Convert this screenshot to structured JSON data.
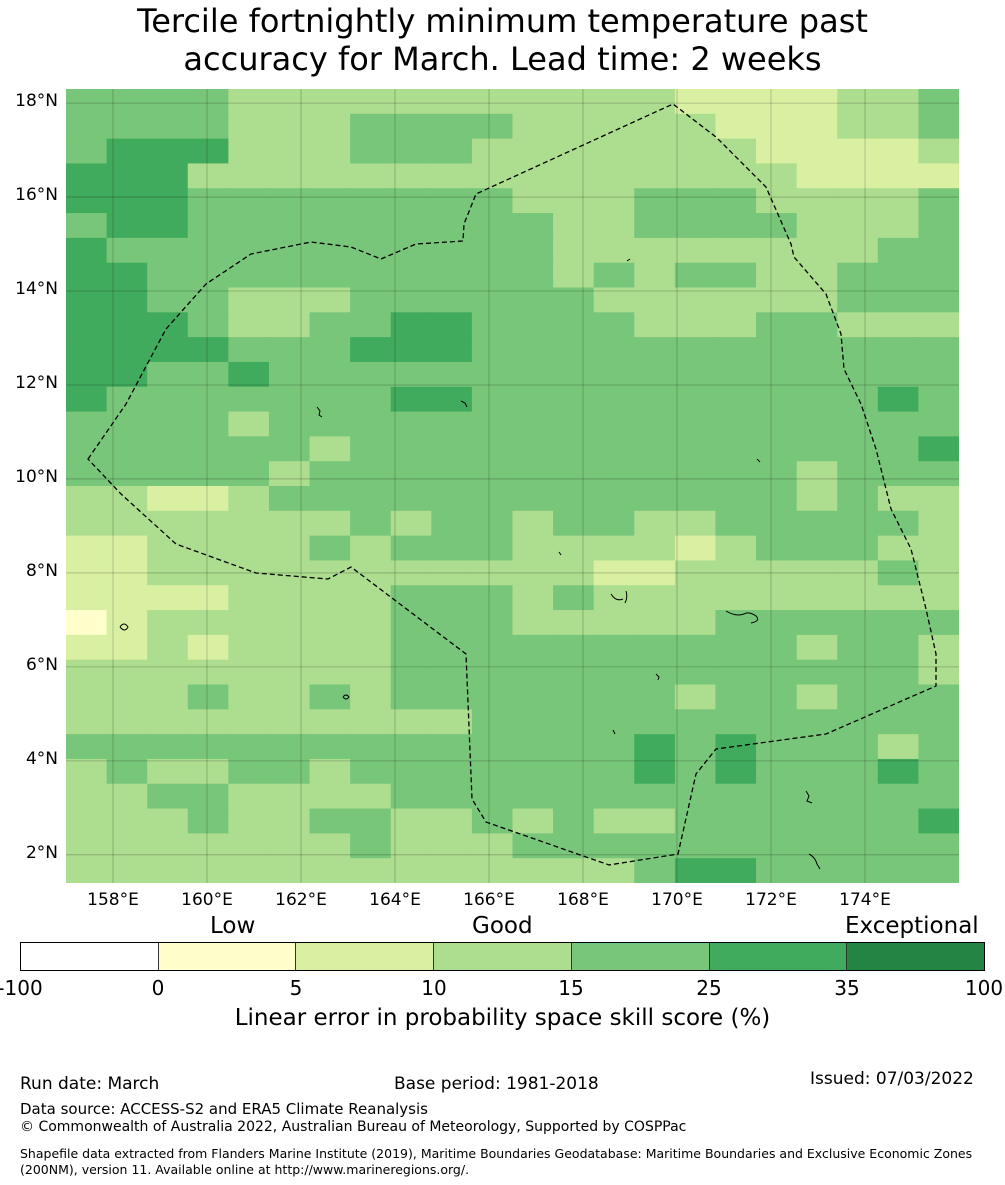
{
  "title": {
    "line1": "Tercile fortnightly minimum temperature past",
    "line2": "accuracy for March. Lead time: 2 weeks"
  },
  "map": {
    "lat_labels": [
      "18°N",
      "16°N",
      "14°N",
      "12°N",
      "10°N",
      "8°N",
      "6°N",
      "4°N",
      "2°N"
    ],
    "lon_labels": [
      "158°E",
      "160°E",
      "162°E",
      "164°E",
      "166°E",
      "168°E",
      "170°E",
      "172°E",
      "174°E"
    ],
    "lat_range": [
      1.4,
      18.3
    ],
    "lon_range": [
      157,
      176
    ],
    "grid": [
      "3333222222222221111223",
      "3333222333322222111223",
      "3444222333222222211112",
      "4442222222222222221111",
      "4443333333322233322223",
      "3443333333332233332223",
      "4333333333332222222233",
      "4433333333332323322333",
      "4433222333333222222333",
      "4443223344333322233222",
      "4444333444333333333333",
      "4433433333333333333333",
      "4333333344333333333343",
      "3333233333333333333333",
      "3333332333333333333334",
      "3333323333333333332333",
      "2211233333333333332322",
      "2222222323323322333332",
      "1122223233322221233322",
      "1122222222222112222232",
      "1111222233323222222222",
      "0122222233322222333333",
      "1121222233333333332332",
      "2222222233333333333332",
      "2223223233333332332333",
      "2222222222333333333333",
      "3333333333333343433323",
      "2322332333333343433343",
      "2233222233333333333333",
      "2223223322323223333334",
      "2222222322233333333333",
      "2222222222222234433333"
    ],
    "palette": [
      "#ffffcc",
      "#d9f0a3",
      "#addd8e",
      "#78c679",
      "#41ab5d",
      "#238443"
    ]
  },
  "colorbar": {
    "category_low": "Low",
    "category_good": "Good",
    "category_exceptional": "Exceptional",
    "ticks": [
      "-100",
      "0",
      "5",
      "10",
      "15",
      "25",
      "35",
      "100"
    ],
    "colors": [
      "#ffffff",
      "#ffffcc",
      "#d9f0a3",
      "#addd8e",
      "#78c679",
      "#41ab5d",
      "#238443"
    ],
    "label": "Linear error in probability space skill score (%)"
  },
  "footer": {
    "run_date": "Run date: March",
    "base_period": "Base period: 1981-2018",
    "issued": "Issued: 07/03/2022",
    "data_source": "Data source: ACCESS-S2 and ERA5 Climate Reanalysis",
    "copyright": "© Commonwealth of Australia 2022, Australian Bureau of Meteorology, Supported by COSPPac",
    "shapefile": "Shapefile data extracted from Flanders Marine Institute (2019), Maritime Boundaries Geodatabase: Maritime Boundaries and Exclusive Economic Zones (200NM), version 11. Available online at http://www.marineregions.org/."
  }
}
